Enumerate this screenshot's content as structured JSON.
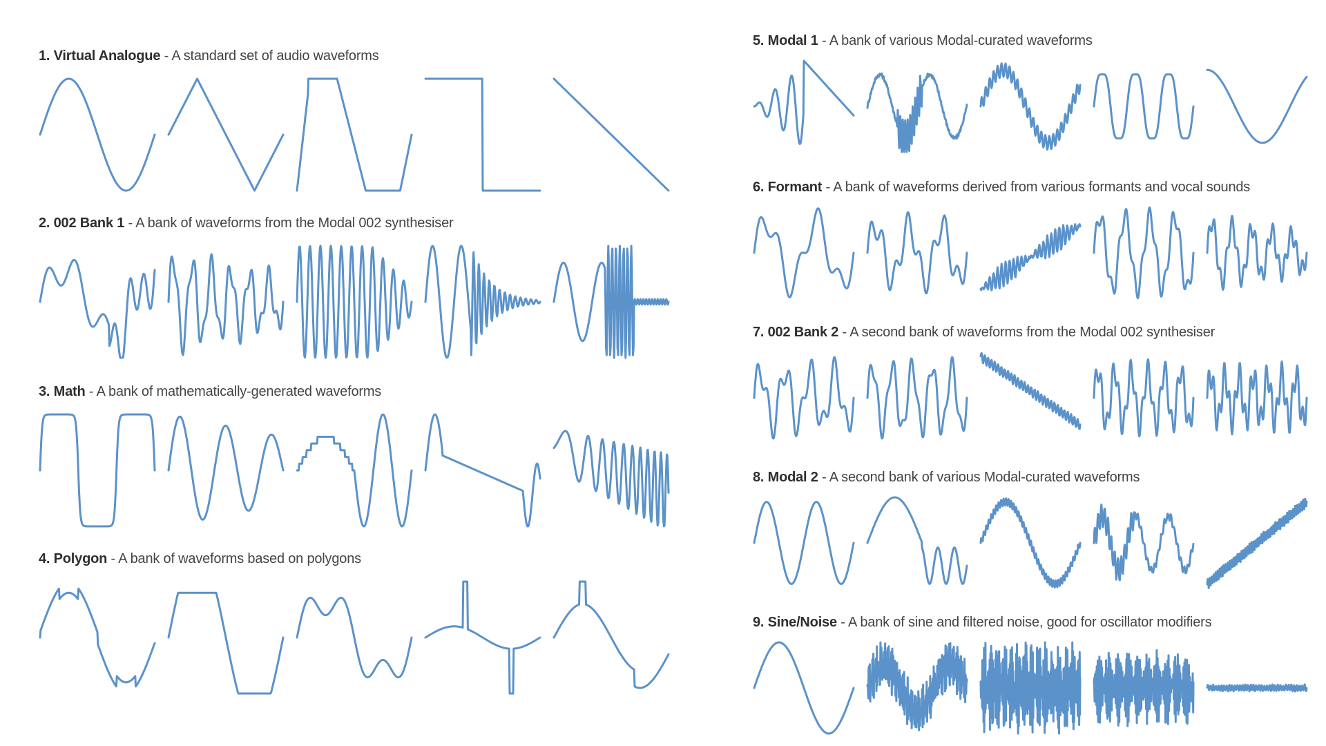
{
  "wave_color": "#5b92c9",
  "banks": [
    {
      "number_name": "1. Virtual Analogue",
      "separator": " - ",
      "description": "A standard set of audio waveforms",
      "waves": [
        "sine",
        "triangle",
        "trapezoid",
        "square",
        "saw-down"
      ]
    },
    {
      "number_name": "2. 002 Bank 1",
      "separator": " - ",
      "description": "A bank of waveforms from the Modal 002 synthesiser",
      "waves": [
        "complex-a",
        "complex-b",
        "pulse-burst",
        "decay-burst",
        "late-burst"
      ]
    },
    {
      "number_name": "3. Math",
      "separator": " - ",
      "description": "A bank of mathematically-generated waveforms",
      "waves": [
        "rounded-square",
        "damped-sine",
        "staircase-sine",
        "smooth-drop",
        "chirp"
      ]
    },
    {
      "number_name": "4. Polygon",
      "separator": " - ",
      "description": "A bank of waveforms based on polygons",
      "waves": [
        "poly-triangle",
        "poly-trapezoid",
        "poly-curve",
        "poly-spike",
        "poly-step"
      ]
    },
    {
      "number_name": "5. Modal 1",
      "separator": " - ",
      "description": "A bank of various Modal-curated waveforms",
      "waves": [
        "burst-saw",
        "jagged",
        "hump",
        "double-hump",
        "swoop"
      ]
    },
    {
      "number_name": "6. Formant",
      "separator": " - ",
      "description": "A bank of waveforms derived from various formants and vocal sounds",
      "waves": [
        "formant-a",
        "formant-b",
        "formant-rise",
        "formant-c",
        "formant-d"
      ]
    },
    {
      "number_name": "7. 002 Bank 2",
      "separator": " - ",
      "description": "A second bank of waveforms from the Modal 002 synthesiser",
      "waves": [
        "rich-a",
        "rich-b",
        "ramp-noisy",
        "rich-c",
        "rich-d"
      ]
    },
    {
      "number_name": "8. Modal 2",
      "separator": " - ",
      "description": "A second bank of various Modal-curated waveforms",
      "waves": [
        "double-peak",
        "peak-fall",
        "noisy-hump",
        "noisy-mix",
        "noisy-ramp"
      ]
    },
    {
      "number_name": "9. Sine/Noise",
      "separator": " - ",
      "description": "A bank of sine and filtered noise, good for oscillator modifiers",
      "waves": [
        "pure-sine",
        "noise-sine",
        "noise-dense",
        "noise-medium",
        "noise-flat"
      ]
    }
  ]
}
